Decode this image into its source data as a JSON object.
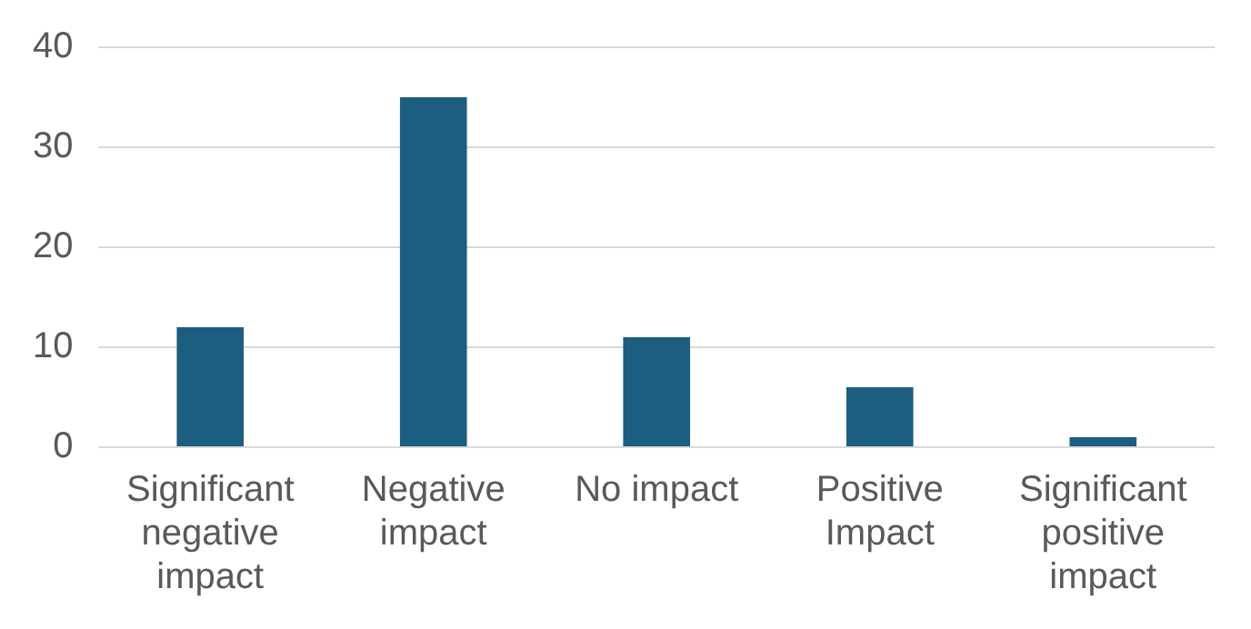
{
  "chart_data": {
    "type": "bar",
    "categories": [
      "Significant negative impact",
      "Negative impact",
      "No impact",
      "Positive Impact",
      "Significant positive impact"
    ],
    "values": [
      12,
      35,
      11,
      6,
      1
    ],
    "color": "#1b5e7f",
    "ylim": [
      0,
      40
    ],
    "yticks": [
      0,
      10,
      20,
      30,
      40
    ],
    "grid": "y",
    "legend": false
  }
}
